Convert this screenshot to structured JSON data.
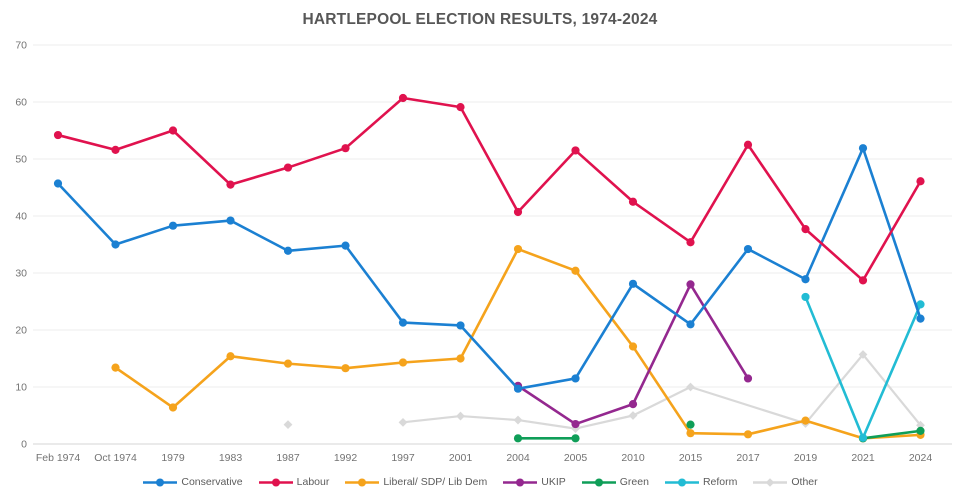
{
  "title": "HARTLEPOOL ELECTION RESULTS, 1974-2024",
  "chart_data": {
    "type": "line",
    "title": "HARTLEPOOL ELECTION RESULTS, 1974-2024",
    "xlabel": "",
    "ylabel": "",
    "grid": true,
    "legend_position": "bottom",
    "y_axis": {
      "min": 0,
      "max": 70,
      "step": 10,
      "ticks": [
        0,
        10,
        20,
        30,
        40,
        50,
        60,
        70
      ]
    },
    "categories": [
      "Feb 1974",
      "Oct 1974",
      "1979",
      "1983",
      "1987",
      "1992",
      "1997",
      "2001",
      "2004",
      "2005",
      "2010",
      "2015",
      "2017",
      "2019",
      "2021",
      "2024"
    ],
    "series": [
      {
        "name": "Conservative",
        "color": "#1b80d2",
        "marker": "circle",
        "z": 2,
        "values": [
          45.7,
          35.0,
          38.3,
          39.2,
          33.9,
          34.8,
          21.3,
          20.8,
          9.7,
          11.5,
          28.1,
          21.0,
          34.2,
          28.9,
          51.9,
          22.0
        ]
      },
      {
        "name": "Labour",
        "color": "#e0124e",
        "marker": "circle",
        "z": 3,
        "values": [
          54.2,
          51.6,
          55.0,
          45.5,
          48.5,
          51.9,
          60.7,
          59.1,
          40.7,
          51.5,
          42.5,
          35.4,
          52.5,
          37.7,
          28.7,
          46.1
        ]
      },
      {
        "name": "Liberal/ SDP/ Lib Dem",
        "color": "#f5a31c",
        "marker": "circle",
        "values": [
          null,
          13.4,
          6.4,
          15.4,
          14.1,
          13.3,
          14.3,
          15.0,
          34.2,
          30.4,
          17.1,
          1.9,
          1.7,
          4.1,
          1.0,
          1.6
        ]
      },
      {
        "name": "UKIP",
        "color": "#94288f",
        "marker": "circle",
        "values": [
          null,
          null,
          null,
          null,
          null,
          null,
          null,
          null,
          10.2,
          3.5,
          7.0,
          28.0,
          11.5,
          null,
          null,
          null
        ]
      },
      {
        "name": "Green",
        "color": "#0f9e58",
        "marker": "circle",
        "values": [
          null,
          null,
          null,
          null,
          null,
          null,
          null,
          null,
          1.0,
          1.0,
          null,
          3.4,
          null,
          null,
          1.0,
          2.3
        ]
      },
      {
        "name": "Reform",
        "color": "#22bcd4",
        "marker": "circle",
        "values": [
          null,
          null,
          null,
          null,
          null,
          null,
          null,
          null,
          null,
          null,
          null,
          null,
          null,
          25.8,
          1.1,
          24.5
        ]
      },
      {
        "name": "Other",
        "color": "#d9d9d9",
        "marker": "diamond",
        "z": 0,
        "values": [
          null,
          null,
          null,
          null,
          3.4,
          null,
          3.8,
          4.9,
          4.2,
          2.7,
          5.0,
          10.0,
          null,
          3.6,
          15.7,
          3.3
        ],
        "segments": [
          [
            4
          ],
          [
            6,
            7,
            8,
            9,
            10,
            11,
            13,
            14,
            15
          ]
        ]
      }
    ]
  }
}
